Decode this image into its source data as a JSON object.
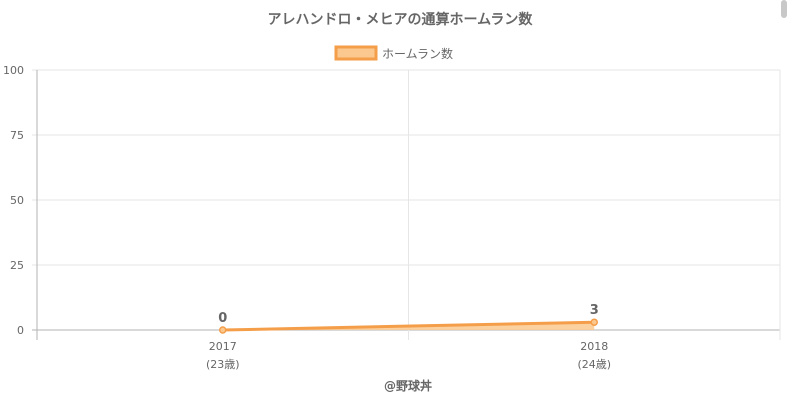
{
  "chart_data": {
    "type": "line",
    "title": "アレハンドロ・メヒアの通算ホームラン数",
    "legend": {
      "label": "ホームラン数",
      "position": "top"
    },
    "categories": [
      {
        "year": "2017",
        "age": "(23歳)"
      },
      {
        "year": "2018",
        "age": "(24歳)"
      }
    ],
    "series": [
      {
        "name": "ホームラン数",
        "values": [
          0,
          3
        ]
      }
    ],
    "data_labels": [
      "0",
      "3"
    ],
    "ylim": [
      0,
      100
    ],
    "yticks": [
      "0",
      "25",
      "50",
      "75",
      "100"
    ],
    "grid": true,
    "fill": true,
    "colors": {
      "line": "#f59e4a",
      "fill": "#fbc98f",
      "grid": "#e6e6e6",
      "axis": "#b3b3b3",
      "text": "#666666"
    },
    "footer": "@野球丼"
  }
}
